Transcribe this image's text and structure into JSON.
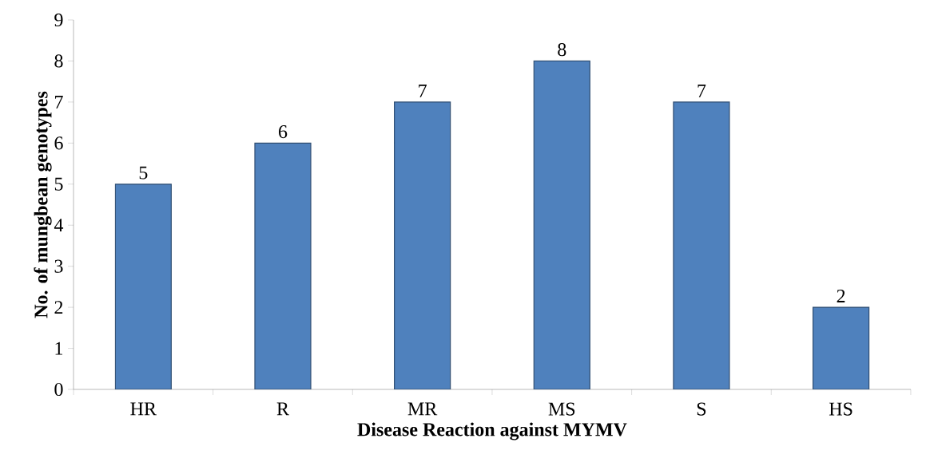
{
  "chart_data": {
    "type": "bar",
    "xlabel": "Disease Reaction against MYMV",
    "ylabel": "No. of mungbean genotypes",
    "categories": [
      "HR",
      "R",
      "MR",
      "MS",
      "S",
      "HS"
    ],
    "values": [
      5,
      6,
      7,
      8,
      7,
      2
    ],
    "color": "#4f81bd",
    "ylim": [
      0,
      9
    ],
    "yticks": [
      0,
      1,
      2,
      3,
      4,
      5,
      6,
      7,
      8,
      9
    ],
    "data_labels": true,
    "grid": false
  }
}
